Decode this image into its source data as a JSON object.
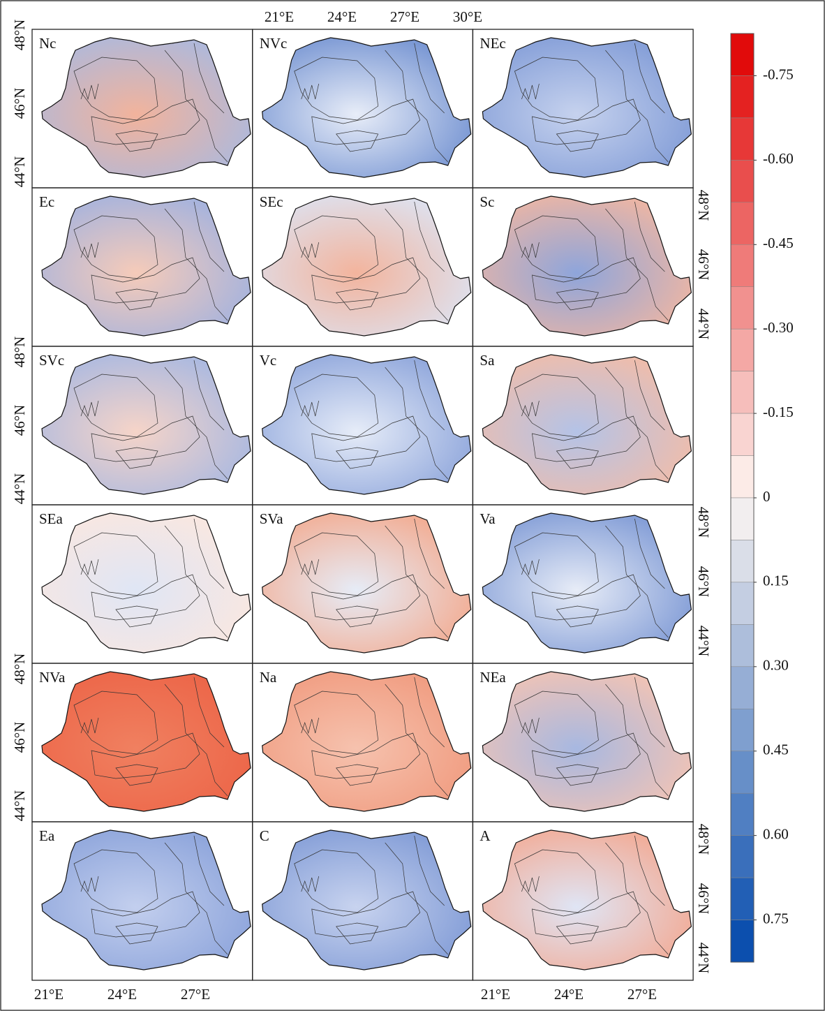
{
  "panels": [
    {
      "label": "Nc",
      "colors": [
        "#a9b9e0",
        "#f2b39c"
      ]
    },
    {
      "label": "NVc",
      "colors": [
        "#6f8fd0",
        "#e8edf8"
      ]
    },
    {
      "label": "NEc",
      "colors": [
        "#7f9ad6",
        "#c6d2ee"
      ]
    },
    {
      "label": "Ec",
      "colors": [
        "#9fb1e0",
        "#f6cbb9"
      ]
    },
    {
      "label": "SEc",
      "colors": [
        "#dce4f4",
        "#f3b49d"
      ]
    },
    {
      "label": "Sc",
      "colors": [
        "#f4b7a0",
        "#8ea5db"
      ]
    },
    {
      "label": "SVc",
      "colors": [
        "#a5b7e2",
        "#f6d4c8"
      ]
    },
    {
      "label": "Vc",
      "colors": [
        "#8ba3da",
        "#e6ecf8"
      ]
    },
    {
      "label": "Sa",
      "colors": [
        "#f4bca6",
        "#b4c3e7"
      ]
    },
    {
      "label": "SEa",
      "colors": [
        "#fbe7df",
        "#dfe6f5"
      ]
    },
    {
      "label": "SVa",
      "colors": [
        "#f3a88c",
        "#e6ecf7"
      ]
    },
    {
      "label": "Va",
      "colors": [
        "#7b97d4",
        "#e7ecf7"
      ]
    },
    {
      "label": "NVa",
      "colors": [
        "#ec6447",
        "#f08060"
      ]
    },
    {
      "label": "Na",
      "colors": [
        "#f09a7e",
        "#f6c2ae"
      ]
    },
    {
      "label": "NEa",
      "colors": [
        "#f6c4b2",
        "#a7b8e1"
      ]
    },
    {
      "label": "Ea",
      "colors": [
        "#8aa2da",
        "#c3cfee"
      ]
    },
    {
      "label": "C",
      "colors": [
        "#7e99d5",
        "#c8d3ef"
      ]
    },
    {
      "label": "A",
      "colors": [
        "#f3a891",
        "#dfe5f5"
      ]
    }
  ],
  "top_lon_ticks": [
    "21°E",
    "24°E",
    "27°E",
    "30°E"
  ],
  "bottom_lon_ticks": [
    "21°E",
    "24°E",
    "27°E"
  ],
  "lat_ticks": [
    "48°N",
    "46°N",
    "44°N"
  ],
  "colorbar": {
    "lim": [
      -0.825,
      0.825
    ],
    "cmap": [
      "#e00000",
      "#fdf6f2",
      "#0047ab"
    ],
    "bins": [
      -0.825,
      -0.75,
      -0.675,
      -0.6,
      -0.525,
      -0.45,
      -0.375,
      -0.3,
      -0.225,
      -0.15,
      -0.075,
      0,
      0.075,
      0.15,
      0.225,
      0.3,
      0.375,
      0.45,
      0.525,
      0.6,
      0.675,
      0.75,
      0.825
    ],
    "ticks": [
      -0.75,
      {
        "value": -0.6,
        "label": "-0.60"
      },
      -0.45,
      {
        "value": -0.3,
        "label": "-0.30"
      },
      -0.15,
      0,
      0.15,
      {
        "value": 0.3,
        "label": "0.30"
      },
      0.45,
      {
        "value": 0.6,
        "label": "0.60"
      },
      0.75
    ]
  }
}
